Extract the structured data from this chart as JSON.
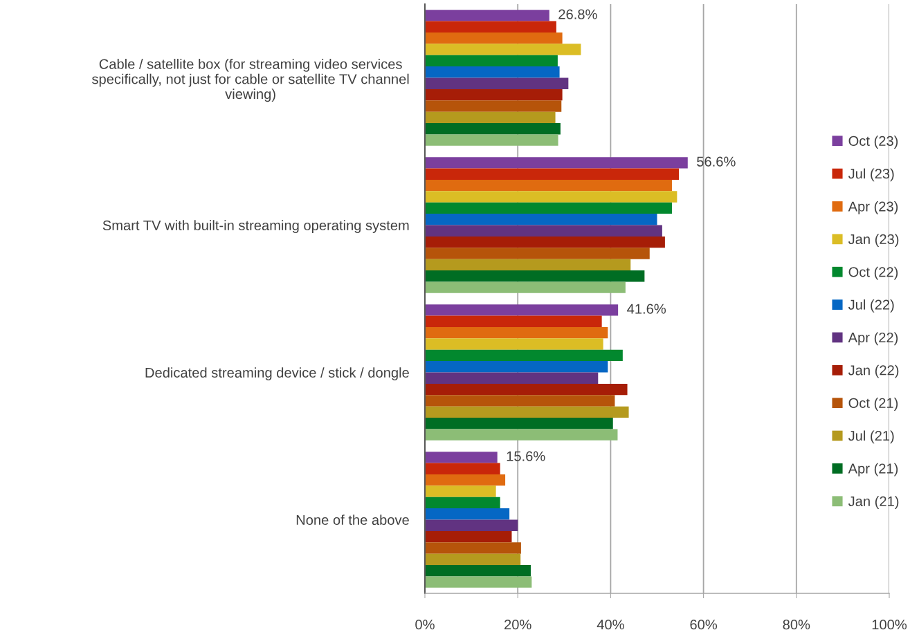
{
  "chart_data": {
    "type": "bar",
    "orientation": "horizontal",
    "categories": [
      "Cable / satellite box (for streaming video services\nspecifically, not just for cable or satellite TV channel\nviewing)",
      "Smart TV with built-in streaming operating system",
      "Dedicated streaming device / stick / dongle",
      "None of the above"
    ],
    "series": [
      {
        "name": "Oct (23)",
        "color": "#7b3f9e",
        "values": [
          26.8,
          56.6,
          41.6,
          15.6
        ],
        "value_labels": [
          "26.8%",
          "56.6%",
          "41.6%",
          "15.6%"
        ]
      },
      {
        "name": "Jul (23)",
        "color": "#c9270a",
        "values": [
          28.3,
          54.7,
          38.1,
          16.2
        ]
      },
      {
        "name": "Apr (23)",
        "color": "#e06b10",
        "values": [
          29.6,
          53.2,
          39.4,
          17.3
        ]
      },
      {
        "name": "Jan (23)",
        "color": "#dbbd25",
        "values": [
          33.6,
          54.3,
          38.4,
          15.3
        ]
      },
      {
        "name": "Oct (22)",
        "color": "#02882e",
        "values": [
          28.6,
          53.2,
          42.6,
          16.2
        ]
      },
      {
        "name": "Jul (22)",
        "color": "#0567c4",
        "values": [
          29.0,
          50.0,
          39.4,
          18.2
        ]
      },
      {
        "name": "Apr (22)",
        "color": "#613381",
        "values": [
          30.9,
          51.1,
          37.3,
          20.0
        ]
      },
      {
        "name": "Jan (22)",
        "color": "#a61d07",
        "values": [
          29.6,
          51.7,
          43.6,
          18.7
        ]
      },
      {
        "name": "Oct (21)",
        "color": "#b6540a",
        "values": [
          29.4,
          48.4,
          40.9,
          20.7
        ]
      },
      {
        "name": "Jul (21)",
        "color": "#b59a1e",
        "values": [
          28.1,
          44.3,
          43.9,
          20.6
        ]
      },
      {
        "name": "Apr (21)",
        "color": "#006d23",
        "values": [
          29.2,
          47.3,
          40.5,
          22.8
        ]
      },
      {
        "name": "Jan (21)",
        "color": "#8cbd76",
        "values": [
          28.7,
          43.2,
          41.5,
          23.0
        ]
      }
    ],
    "xlim": [
      0,
      100
    ],
    "xticks": [
      {
        "value": 0,
        "label": "0%"
      },
      {
        "value": 20,
        "label": "20%"
      },
      {
        "value": 40,
        "label": "40%"
      },
      {
        "value": 60,
        "label": "60%"
      },
      {
        "value": 80,
        "label": "80%"
      },
      {
        "value": 100,
        "label": "100%"
      }
    ],
    "grid": "x",
    "legend": "right"
  }
}
